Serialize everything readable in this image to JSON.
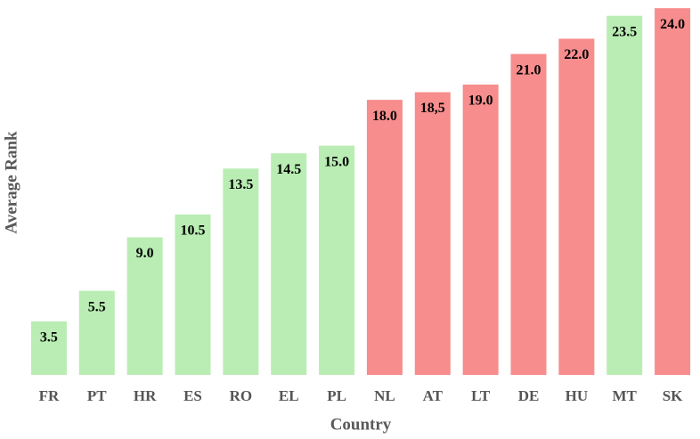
{
  "chart_data": {
    "type": "bar",
    "x_label": "Country",
    "y_label": "Average Rank",
    "categories": [
      "FR",
      "PT",
      "HR",
      "ES",
      "RO",
      "EL",
      "PL",
      "NL",
      "AT",
      "LT",
      "DE",
      "HU",
      "MT",
      "SK"
    ],
    "values": [
      3.5,
      5.5,
      9.0,
      10.5,
      13.5,
      14.5,
      15.0,
      18.0,
      18.5,
      19.0,
      21.0,
      22.0,
      23.5,
      24.0
    ],
    "value_labels": [
      "3.5",
      "5.5",
      "9.0",
      "10.5",
      "13.5",
      "14.5",
      "15.0",
      "18.0",
      "18,5",
      "19.0",
      "21.0",
      "22.0",
      "23.5",
      "24.0"
    ],
    "colors": [
      "#b9edb3",
      "#b9edb3",
      "#b9edb3",
      "#b9edb3",
      "#b9edb3",
      "#b9edb3",
      "#b9edb3",
      "#f78d8d",
      "#f78d8d",
      "#f78d8d",
      "#f78d8d",
      "#f78d8d",
      "#b9edb3",
      "#f78d8d"
    ],
    "ylim": [
      0,
      24.3
    ]
  }
}
